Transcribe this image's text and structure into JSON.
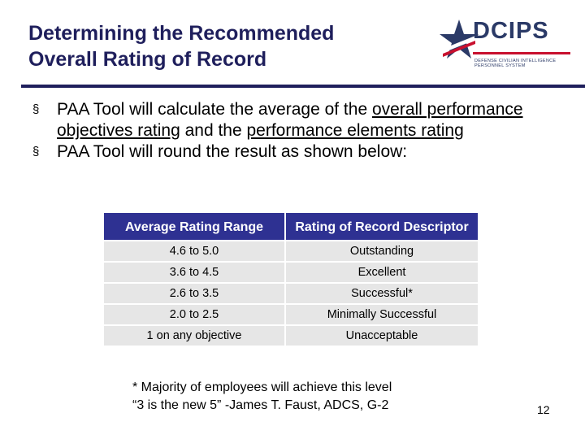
{
  "slide": {
    "title_line1": "Determining the Recommended",
    "title_line2": "Overall Rating of Record",
    "logo": {
      "name": "DCIPS",
      "sub_line1": "DEFENSE CIVILIAN INTELLIGENCE",
      "sub_line2": "PERSONNEL SYSTEM"
    },
    "bullets": [
      {
        "mark": "§",
        "parts": [
          "PAA Tool will calculate the average of the ",
          "overall performance objectives rating",
          " and the ",
          "performance elements rating"
        ]
      },
      {
        "mark": "§",
        "text": "PAA Tool will round the result as shown below:"
      }
    ],
    "table": {
      "headers": [
        "Average Rating Range",
        "Rating of Record Descriptor"
      ],
      "rows": [
        [
          "4.6 to 5.0",
          "Outstanding"
        ],
        [
          "3.6 to 4.5",
          "Excellent"
        ],
        [
          "2.6 to 3.5",
          "Successful*"
        ],
        [
          "2.0 to 2.5",
          "Minimally Successful"
        ],
        [
          "1 on any objective",
          "Unacceptable"
        ]
      ]
    },
    "note_line1": "* Majority of employees will achieve this level",
    "note_line2": "“3 is the new 5” -James T. Faust, ADCS, G-2",
    "page_number": "12",
    "colors": {
      "title": "#1f1f5c",
      "rule": "#1f1f5c",
      "header_bg": "#2e3192",
      "cell_bg": "#e6e6e6"
    }
  }
}
